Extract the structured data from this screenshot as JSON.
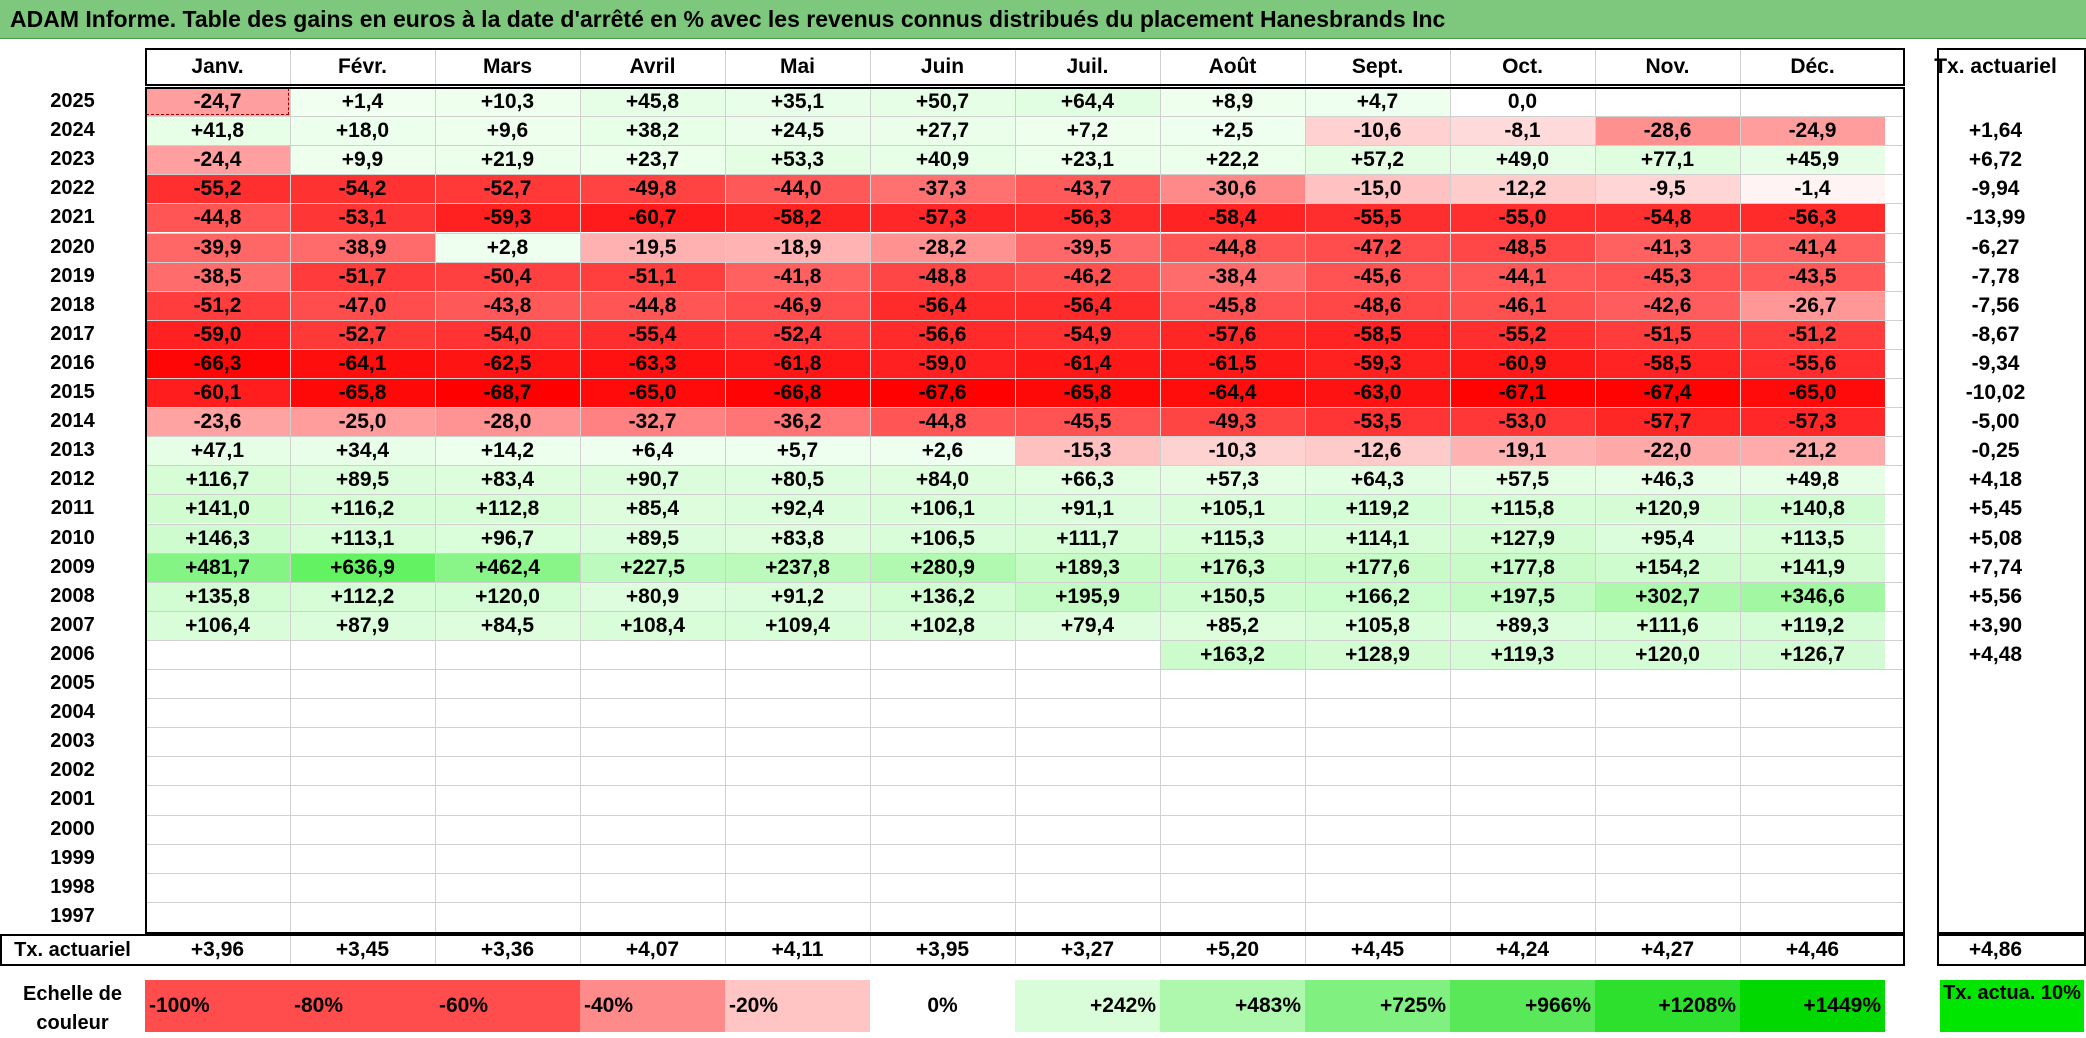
{
  "title": "ADAM Informe. Table des gains en euros à la date d'arrêté en % avec les revenus connus distribués du placement Hanesbrands Inc",
  "months": [
    "Janv.",
    "Févr.",
    "Mars",
    "Avril",
    "Mai",
    "Juin",
    "Juil.",
    "Août",
    "Sept.",
    "Oct.",
    "Nov.",
    "Déc."
  ],
  "tx_header": "Tx. actuariel",
  "rows": [
    {
      "year": "2025",
      "values": [
        "-24,7",
        "+1,4",
        "+10,3",
        "+45,8",
        "+35,1",
        "+50,7",
        "+64,4",
        "+8,9",
        "+4,7",
        "0,0",
        "",
        ""
      ],
      "tx": ""
    },
    {
      "year": "2024",
      "values": [
        "+41,8",
        "+18,0",
        "+9,6",
        "+38,2",
        "+24,5",
        "+27,7",
        "+7,2",
        "+2,5",
        "-10,6",
        "-8,1",
        "-28,6",
        "-24,9"
      ],
      "tx": "+1,64"
    },
    {
      "year": "2023",
      "values": [
        "-24,4",
        "+9,9",
        "+21,9",
        "+23,7",
        "+53,3",
        "+40,9",
        "+23,1",
        "+22,2",
        "+57,2",
        "+49,0",
        "+77,1",
        "+45,9"
      ],
      "tx": "+6,72"
    },
    {
      "year": "2022",
      "values": [
        "-55,2",
        "-54,2",
        "-52,7",
        "-49,8",
        "-44,0",
        "-37,3",
        "-43,7",
        "-30,6",
        "-15,0",
        "-12,2",
        "-9,5",
        "-1,4"
      ],
      "tx": "-9,94"
    },
    {
      "year": "2021",
      "values": [
        "-44,8",
        "-53,1",
        "-59,3",
        "-60,7",
        "-58,2",
        "-57,3",
        "-56,3",
        "-58,4",
        "-55,5",
        "-55,0",
        "-54,8",
        "-56,3"
      ],
      "tx": "-13,99"
    },
    {
      "year": "2020",
      "values": [
        "-39,9",
        "-38,9",
        "+2,8",
        "-19,5",
        "-18,9",
        "-28,2",
        "-39,5",
        "-44,8",
        "-47,2",
        "-48,5",
        "-41,3",
        "-41,4"
      ],
      "tx": "-6,27"
    },
    {
      "year": "2019",
      "values": [
        "-38,5",
        "-51,7",
        "-50,4",
        "-51,1",
        "-41,8",
        "-48,8",
        "-46,2",
        "-38,4",
        "-45,6",
        "-44,1",
        "-45,3",
        "-43,5"
      ],
      "tx": "-7,78"
    },
    {
      "year": "2018",
      "values": [
        "-51,2",
        "-47,0",
        "-43,8",
        "-44,8",
        "-46,9",
        "-56,4",
        "-56,4",
        "-45,8",
        "-48,6",
        "-46,1",
        "-42,6",
        "-26,7"
      ],
      "tx": "-7,56"
    },
    {
      "year": "2017",
      "values": [
        "-59,0",
        "-52,7",
        "-54,0",
        "-55,4",
        "-52,4",
        "-56,6",
        "-54,9",
        "-57,6",
        "-58,5",
        "-55,2",
        "-51,5",
        "-51,2"
      ],
      "tx": "-8,67"
    },
    {
      "year": "2016",
      "values": [
        "-66,3",
        "-64,1",
        "-62,5",
        "-63,3",
        "-61,8",
        "-59,0",
        "-61,4",
        "-61,5",
        "-59,3",
        "-60,9",
        "-58,5",
        "-55,6"
      ],
      "tx": "-9,34"
    },
    {
      "year": "2015",
      "values": [
        "-60,1",
        "-65,8",
        "-68,7",
        "-65,0",
        "-66,8",
        "-67,6",
        "-65,8",
        "-64,4",
        "-63,0",
        "-67,1",
        "-67,4",
        "-65,0"
      ],
      "tx": "-10,02"
    },
    {
      "year": "2014",
      "values": [
        "-23,6",
        "-25,0",
        "-28,0",
        "-32,7",
        "-36,2",
        "-44,8",
        "-45,5",
        "-49,3",
        "-53,5",
        "-53,0",
        "-57,7",
        "-57,3"
      ],
      "tx": "-5,00"
    },
    {
      "year": "2013",
      "values": [
        "+47,1",
        "+34,4",
        "+14,2",
        "+6,4",
        "+5,7",
        "+2,6",
        "-15,3",
        "-10,3",
        "-12,6",
        "-19,1",
        "-22,0",
        "-21,2"
      ],
      "tx": "-0,25"
    },
    {
      "year": "2012",
      "values": [
        "+116,7",
        "+89,5",
        "+83,4",
        "+90,7",
        "+80,5",
        "+84,0",
        "+66,3",
        "+57,3",
        "+64,3",
        "+57,5",
        "+46,3",
        "+49,8"
      ],
      "tx": "+4,18"
    },
    {
      "year": "2011",
      "values": [
        "+141,0",
        "+116,2",
        "+112,8",
        "+85,4",
        "+92,4",
        "+106,1",
        "+91,1",
        "+105,1",
        "+119,2",
        "+115,8",
        "+120,9",
        "+140,8"
      ],
      "tx": "+5,45"
    },
    {
      "year": "2010",
      "values": [
        "+146,3",
        "+113,1",
        "+96,7",
        "+89,5",
        "+83,8",
        "+106,5",
        "+111,7",
        "+115,3",
        "+114,1",
        "+127,9",
        "+95,4",
        "+113,5"
      ],
      "tx": "+5,08"
    },
    {
      "year": "2009",
      "values": [
        "+481,7",
        "+636,9",
        "+462,4",
        "+227,5",
        "+237,8",
        "+280,9",
        "+189,3",
        "+176,3",
        "+177,6",
        "+177,8",
        "+154,2",
        "+141,9"
      ],
      "tx": "+7,74"
    },
    {
      "year": "2008",
      "values": [
        "+135,8",
        "+112,2",
        "+120,0",
        "+80,9",
        "+91,2",
        "+136,2",
        "+195,9",
        "+150,5",
        "+166,2",
        "+197,5",
        "+302,7",
        "+346,6"
      ],
      "tx": "+5,56"
    },
    {
      "year": "2007",
      "values": [
        "+106,4",
        "+87,9",
        "+84,5",
        "+108,4",
        "+109,4",
        "+102,8",
        "+79,4",
        "+85,2",
        "+105,8",
        "+89,3",
        "+111,6",
        "+119,2"
      ],
      "tx": "+3,90"
    },
    {
      "year": "2006",
      "values": [
        "",
        "",
        "",
        "",
        "",
        "",
        "",
        "+163,2",
        "+128,9",
        "+119,3",
        "+120,0",
        "+126,7"
      ],
      "tx": "+4,48"
    },
    {
      "year": "2005",
      "values": [
        "",
        "",
        "",
        "",
        "",
        "",
        "",
        "",
        "",
        "",
        "",
        ""
      ],
      "tx": ""
    },
    {
      "year": "2004",
      "values": [
        "",
        "",
        "",
        "",
        "",
        "",
        "",
        "",
        "",
        "",
        "",
        ""
      ],
      "tx": ""
    },
    {
      "year": "2003",
      "values": [
        "",
        "",
        "",
        "",
        "",
        "",
        "",
        "",
        "",
        "",
        "",
        ""
      ],
      "tx": ""
    },
    {
      "year": "2002",
      "values": [
        "",
        "",
        "",
        "",
        "",
        "",
        "",
        "",
        "",
        "",
        "",
        ""
      ],
      "tx": ""
    },
    {
      "year": "2001",
      "values": [
        "",
        "",
        "",
        "",
        "",
        "",
        "",
        "",
        "",
        "",
        "",
        ""
      ],
      "tx": ""
    },
    {
      "year": "2000",
      "values": [
        "",
        "",
        "",
        "",
        "",
        "",
        "",
        "",
        "",
        "",
        "",
        ""
      ],
      "tx": ""
    },
    {
      "year": "1999",
      "values": [
        "",
        "",
        "",
        "",
        "",
        "",
        "",
        "",
        "",
        "",
        "",
        ""
      ],
      "tx": ""
    },
    {
      "year": "1998",
      "values": [
        "",
        "",
        "",
        "",
        "",
        "",
        "",
        "",
        "",
        "",
        "",
        ""
      ],
      "tx": ""
    },
    {
      "year": "1997",
      "values": [
        "",
        "",
        "",
        "",
        "",
        "",
        "",
        "",
        "",
        "",
        "",
        ""
      ],
      "tx": ""
    }
  ],
  "footer": {
    "label": "Tx. actuariel",
    "values": [
      "+3,96",
      "+3,45",
      "+3,36",
      "+4,07",
      "+4,11",
      "+3,95",
      "+3,27",
      "+5,20",
      "+4,45",
      "+4,24",
      "+4,27",
      "+4,46"
    ],
    "total": "+4,86"
  },
  "legend": {
    "label": "Echelle de couleur",
    "items": [
      {
        "text": "-100%",
        "color": "#ff4d4d",
        "align": "left"
      },
      {
        "text": "-80%",
        "color": "#ff4d4d",
        "align": "left"
      },
      {
        "text": "-60%",
        "color": "#ff4d4d",
        "align": "left"
      },
      {
        "text": "-40%",
        "color": "#ff8a8a",
        "align": "left"
      },
      {
        "text": "-20%",
        "color": "#ffc4c4",
        "align": "left"
      },
      {
        "text": "0%",
        "color": "#ffffff",
        "align": "center"
      },
      {
        "text": "+242%",
        "color": "#d9fcd9",
        "align": "right"
      },
      {
        "text": "+483%",
        "color": "#aef8ae",
        "align": "right"
      },
      {
        "text": "+725%",
        "color": "#80f080",
        "align": "right"
      },
      {
        "text": "+966%",
        "color": "#58e858",
        "align": "right"
      },
      {
        "text": "+1208%",
        "color": "#2ee02e",
        "align": "right"
      },
      {
        "text": "+1449%",
        "color": "#00d800",
        "align": "right"
      }
    ],
    "tx_label": "Tx. actua. 10%",
    "tx_color": "#00e600"
  },
  "colors": {
    "title_bar": "#7dc87d",
    "negative_max": "#ff0000",
    "positive_max": "#00d800",
    "highlight_border": "#a00000"
  }
}
